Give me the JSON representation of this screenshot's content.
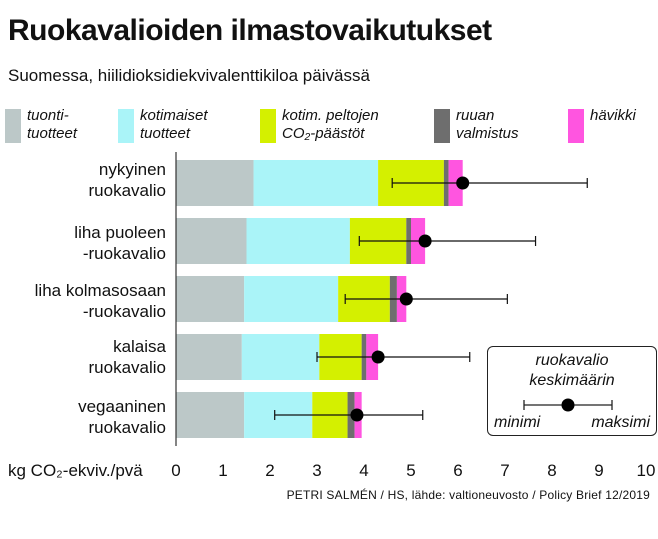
{
  "header": {
    "title": "Ruokavalioiden ilmastovaikutukset",
    "subtitle": "Suomessa, hiilidioksidiekvivalenttikiloa päivässä"
  },
  "legend": [
    {
      "label": "tuonti-\ntuotteet",
      "color": "#bcc8c8"
    },
    {
      "label": "kotimaiset\ntuotteet",
      "color": "#aaf4f8"
    },
    {
      "label": "kotim. peltojen\nCO₂-päästöt",
      "color": "#d4f000"
    },
    {
      "label": "ruuan\nvalmistus",
      "color": "#6e6e6e"
    },
    {
      "label": "hävikki",
      "color": "#ff55e0"
    }
  ],
  "key": {
    "title": "ruokavalio\nkeskimäärin",
    "min_label": "minimi",
    "max_label": "maksimi"
  },
  "source": "PETRI SALMÉN / HS, lähde: valtioneuvosto / Policy Brief 12/2019",
  "chart_data": {
    "type": "bar",
    "orientation": "horizontal",
    "stacked": true,
    "title": "Ruokavalioiden ilmastovaikutukset",
    "subtitle": "Suomessa, hiilidioksidiekvivalenttikiloa päivässä",
    "xlabel": "kg CO₂-ekviv./pvä",
    "xlim": [
      0,
      10
    ],
    "xticks": [
      "0",
      "1",
      "2",
      "3",
      "4",
      "5",
      "6",
      "7",
      "8",
      "9",
      "10"
    ],
    "grid": false,
    "legend_position": "top",
    "categories": [
      "nykyinen\nruokavalio",
      "liha puoleen\n-ruokavalio",
      "liha kolmasosaan\n-ruokavalio",
      "kalaisa\nruokavalio",
      "vegaaninen\nruokavalio"
    ],
    "series": [
      {
        "name": "tuonti-tuotteet",
        "values": [
          1.65,
          1.5,
          1.45,
          1.4,
          1.45
        ]
      },
      {
        "name": "kotimaiset tuotteet",
        "values": [
          2.65,
          2.2,
          2.0,
          1.65,
          1.45
        ]
      },
      {
        "name": "kotim. peltojen CO₂-päästöt",
        "values": [
          1.4,
          1.2,
          1.1,
          0.9,
          0.75
        ]
      },
      {
        "name": "ruuan valmistus",
        "values": [
          0.1,
          0.1,
          0.15,
          0.1,
          0.15
        ]
      },
      {
        "name": "hävikki",
        "values": [
          0.3,
          0.3,
          0.2,
          0.25,
          0.15
        ]
      }
    ],
    "average": [
      6.1,
      5.3,
      4.9,
      4.3,
      3.85
    ],
    "minimum": [
      4.6,
      3.9,
      3.6,
      3.0,
      2.1
    ],
    "maximum": [
      8.75,
      7.65,
      7.05,
      6.25,
      5.25
    ]
  }
}
